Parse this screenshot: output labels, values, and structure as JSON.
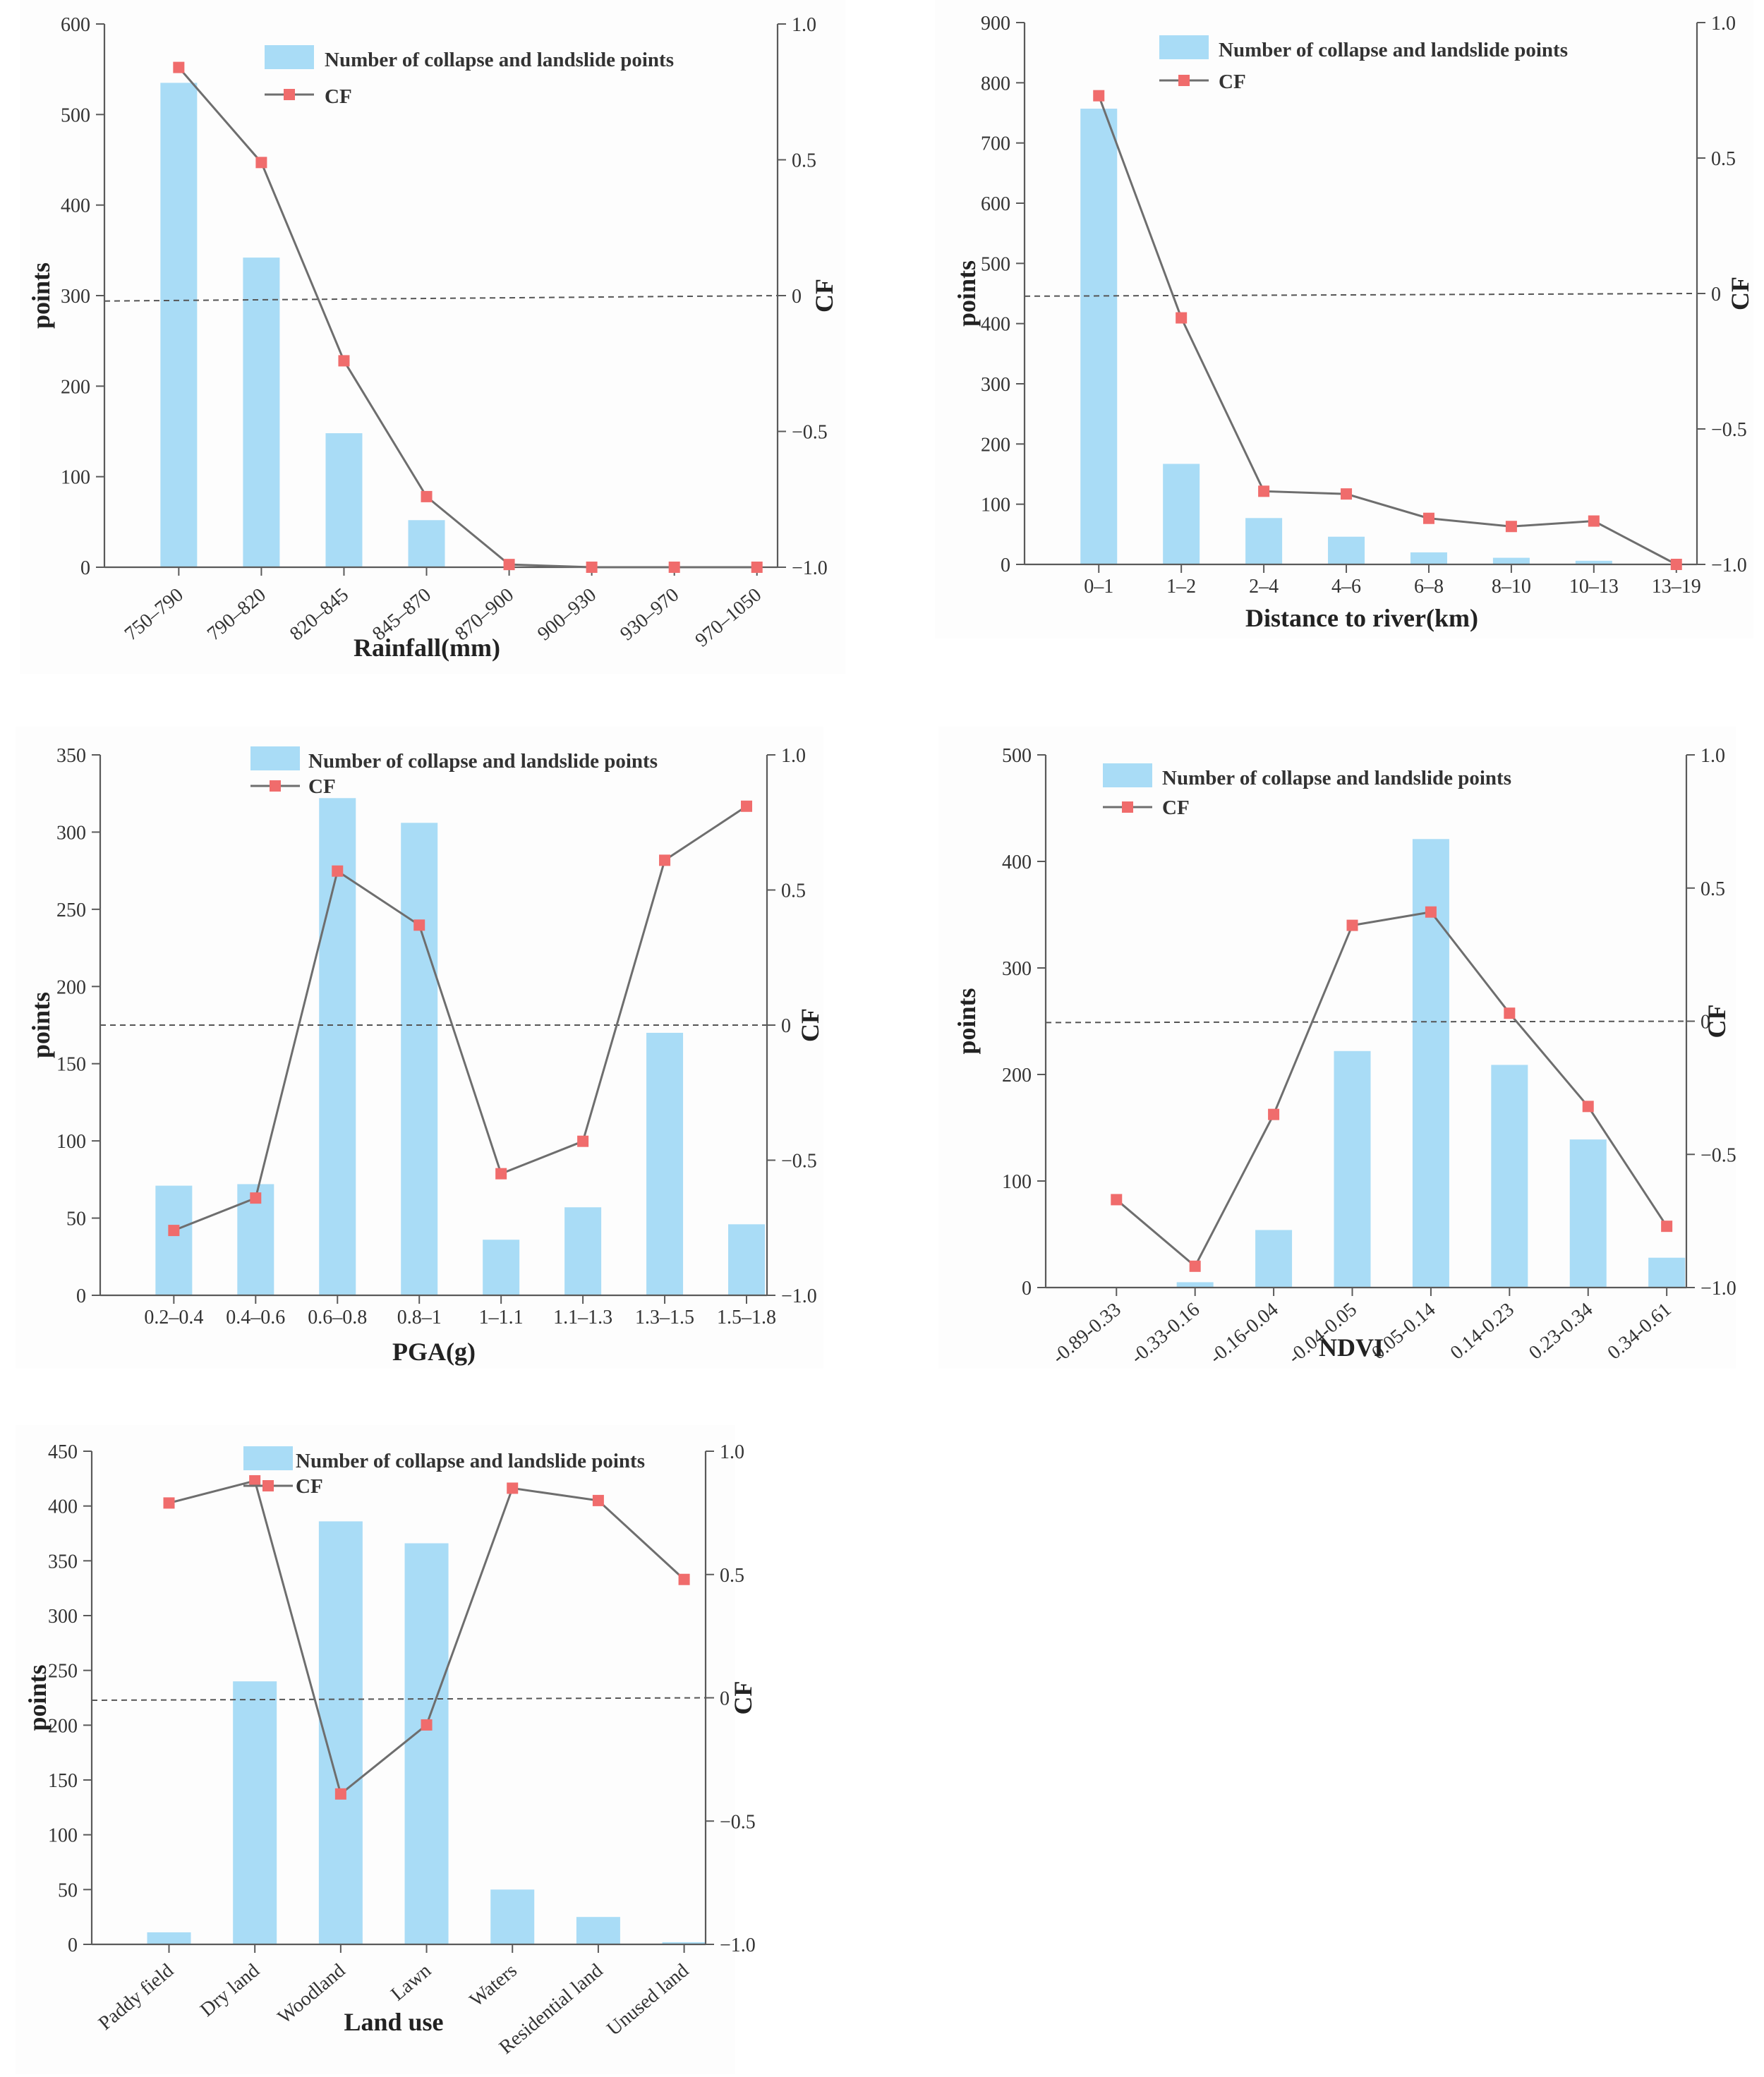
{
  "legend": {
    "bar_label": "Number of collapse and landslide points",
    "line_label": "CF"
  },
  "colors": {
    "bar": "#a9dcf6",
    "line": "#6e6e6e",
    "marker": "#f06c6c",
    "axis": "#5a5a5a"
  },
  "chart_data": [
    {
      "id": "rainfall",
      "type": "bar+line",
      "categories": [
        "750–790",
        "790–820",
        "820–845",
        "845–870",
        "870–900",
        "900–930",
        "930–970",
        "970–1050"
      ],
      "series": [
        {
          "name": "Number of collapse and landslide points",
          "axis": "left",
          "values": [
            535,
            342,
            148,
            52,
            0,
            0,
            0,
            0
          ]
        },
        {
          "name": "CF",
          "axis": "right",
          "values": [
            0.84,
            0.49,
            -0.24,
            -0.74,
            -0.99,
            -1.0,
            -1.0,
            -1.0
          ]
        }
      ],
      "xlabel": "Rainfall(mm)",
      "ylabel": "points",
      "y2label": "CF",
      "ylim": [
        0,
        600
      ],
      "yticks": [
        0,
        100,
        200,
        300,
        400,
        500,
        600
      ],
      "y2lim": [
        -1,
        1
      ],
      "y2ticks": [
        -1.0,
        -0.5,
        0,
        0.5,
        1.0
      ],
      "y2ticklabels": [
        "−1.0",
        "−0.5",
        "0",
        "0.5",
        "1.0"
      ],
      "zero_line_cf": [
        -0.02,
        0
      ],
      "rotate_ticks": true
    },
    {
      "id": "river",
      "type": "bar+line",
      "categories": [
        "0–1",
        "1–2",
        "2–4",
        "4–6",
        "6–8",
        "8–10",
        "10–13",
        "13–19"
      ],
      "series": [
        {
          "name": "Number of collapse and landslide points",
          "axis": "left",
          "values": [
            757,
            167,
            77,
            46,
            20,
            11,
            6,
            0
          ]
        },
        {
          "name": "CF",
          "axis": "right",
          "values": [
            0.73,
            -0.09,
            -0.73,
            -0.74,
            -0.83,
            -0.86,
            -0.84,
            -1.0
          ]
        }
      ],
      "xlabel": "Distance to river(km)",
      "ylabel": "points",
      "y2label": "CF",
      "ylim": [
        0,
        900
      ],
      "yticks": [
        0,
        100,
        200,
        300,
        400,
        500,
        600,
        700,
        800,
        900
      ],
      "y2lim": [
        -1,
        1
      ],
      "y2ticks": [
        -1.0,
        -0.5,
        0,
        0.5,
        1.0
      ],
      "y2ticklabels": [
        "−1.0",
        "−0.5",
        "0",
        "0.5",
        "1.0"
      ],
      "zero_line_cf": [
        -0.01,
        0
      ],
      "rotate_ticks": false
    },
    {
      "id": "pga",
      "type": "bar+line",
      "categories": [
        "0.2–0.4",
        "0.4–0.6",
        "0.6–0.8",
        "0.8–1",
        "1–1.1",
        "1.1–1.3",
        "1.3–1.5",
        "1.5–1.8"
      ],
      "series": [
        {
          "name": "Number of collapse and landslide points",
          "axis": "left",
          "values": [
            71,
            72,
            322,
            306,
            36,
            57,
            170,
            46
          ]
        },
        {
          "name": "CF",
          "axis": "right",
          "values": [
            -0.76,
            -0.64,
            0.57,
            0.37,
            -0.55,
            -0.43,
            0.61,
            0.81
          ]
        }
      ],
      "xlabel": "PGA(g)",
      "ylabel": "points",
      "y2label": "CF",
      "ylim": [
        0,
        350
      ],
      "yticks": [
        0,
        50,
        100,
        150,
        200,
        250,
        300,
        350
      ],
      "y2lim": [
        -1,
        1
      ],
      "y2ticks": [
        -1.0,
        -0.5,
        0,
        0.5,
        1.0
      ],
      "y2ticklabels": [
        "−1.0",
        "−0.5",
        "0",
        "0.5",
        "1.0"
      ],
      "zero_line_cf": [
        0,
        0
      ],
      "rotate_ticks": false
    },
    {
      "id": "ndvi",
      "type": "bar+line",
      "categories": [
        "-0.89-0.33",
        "-0.33-0.16",
        "-0.16-0.04",
        "-0.04-0.05",
        "0.05-0.14",
        "0.14-0.23",
        "0.23-0.34",
        "0.34-0.61"
      ],
      "series": [
        {
          "name": "Number of collapse and landslide points",
          "axis": "left",
          "values": [
            0,
            5,
            54,
            222,
            421,
            209,
            139,
            28
          ]
        },
        {
          "name": "CF",
          "axis": "right",
          "values": [
            -0.67,
            -0.92,
            -0.35,
            0.36,
            0.41,
            0.03,
            -0.32,
            -0.77
          ]
        }
      ],
      "xlabel": "NDVI",
      "ylabel": "points",
      "y2label": "CF",
      "ylim": [
        0,
        500
      ],
      "yticks": [
        0,
        100,
        200,
        300,
        400,
        500
      ],
      "y2lim": [
        -1,
        1
      ],
      "y2ticks": [
        -1.0,
        -0.5,
        0,
        0.5,
        1.0
      ],
      "y2ticklabels": [
        "−1.0",
        "−0.5",
        "0",
        "0.5",
        "1.0"
      ],
      "zero_line_cf": [
        -0.005,
        0
      ],
      "rotate_ticks": true
    },
    {
      "id": "landuse",
      "type": "bar+line",
      "categories": [
        "Paddy field",
        "Dry land",
        "Woodland",
        "Lawn",
        "Waters",
        "Residential land",
        "Unused land"
      ],
      "series": [
        {
          "name": "Number of collapse and landslide points",
          "axis": "left",
          "values": [
            11,
            240,
            386,
            366,
            50,
            25,
            2
          ]
        },
        {
          "name": "CF",
          "axis": "right",
          "values": [
            0.79,
            0.88,
            -0.39,
            -0.11,
            0.85,
            0.8,
            0.48
          ]
        }
      ],
      "xlabel": "Land use",
      "ylabel": "points",
      "y2label": "CF",
      "ylim": [
        0,
        450
      ],
      "yticks": [
        0,
        50,
        100,
        150,
        200,
        250,
        300,
        350,
        400,
        450
      ],
      "y2lim": [
        -1,
        1
      ],
      "y2ticks": [
        -1.0,
        -0.5,
        0,
        0.5,
        1.0
      ],
      "y2ticklabels": [
        "−1.0",
        "−0.5",
        "0",
        "0.5",
        "1.0"
      ],
      "zero_line_cf": [
        -0.01,
        0
      ],
      "rotate_ticks": true
    }
  ]
}
